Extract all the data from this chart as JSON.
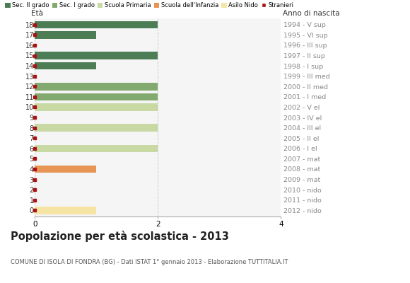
{
  "ages": [
    18,
    17,
    16,
    15,
    14,
    13,
    12,
    11,
    10,
    9,
    8,
    7,
    6,
    5,
    4,
    3,
    2,
    1,
    0
  ],
  "right_labels": [
    "1994 - V sup",
    "1995 - VI sup",
    "1996 - III sup",
    "1997 - II sup",
    "1998 - I sup",
    "1999 - III med",
    "2000 - II med",
    "2001 - I med",
    "2002 - V el",
    "2003 - IV el",
    "2004 - III el",
    "2005 - II el",
    "2006 - I el",
    "2007 - mat",
    "2008 - mat",
    "2009 - mat",
    "2010 - nido",
    "2011 - nido",
    "2012 - nido"
  ],
  "bar_values": [
    2,
    1,
    0,
    2,
    1,
    0,
    2,
    2,
    2,
    0,
    2,
    0,
    2,
    0,
    1,
    0,
    0,
    0,
    1
  ],
  "age_school_type": [
    0,
    0,
    0,
    0,
    0,
    1,
    1,
    1,
    2,
    2,
    2,
    2,
    2,
    3,
    3,
    3,
    4,
    4,
    4
  ],
  "legend_labels": [
    "Sec. II grado",
    "Sec. I grado",
    "Scuola Primaria",
    "Scuola dell'Infanzia",
    "Asilo Nido",
    "Stranieri"
  ],
  "legend_colors": [
    "#4d7d55",
    "#82aa6e",
    "#c8d9a4",
    "#e89455",
    "#f5e4a4",
    "#aa1111"
  ],
  "title": "Popolazione per età scolastica - 2013",
  "subtitle": "COMUNE DI ISOLA DI FONDRA (BG) - Dati ISTAT 1° gennaio 2013 - Elaborazione TUTTITALIA.IT",
  "label_eta": "Età",
  "label_anno": "Anno di nascita",
  "xlim": [
    0,
    4
  ],
  "xticks": [
    0,
    2,
    4
  ],
  "bg_color": "#ffffff",
  "plot_bg_color": "#f5f5f5"
}
